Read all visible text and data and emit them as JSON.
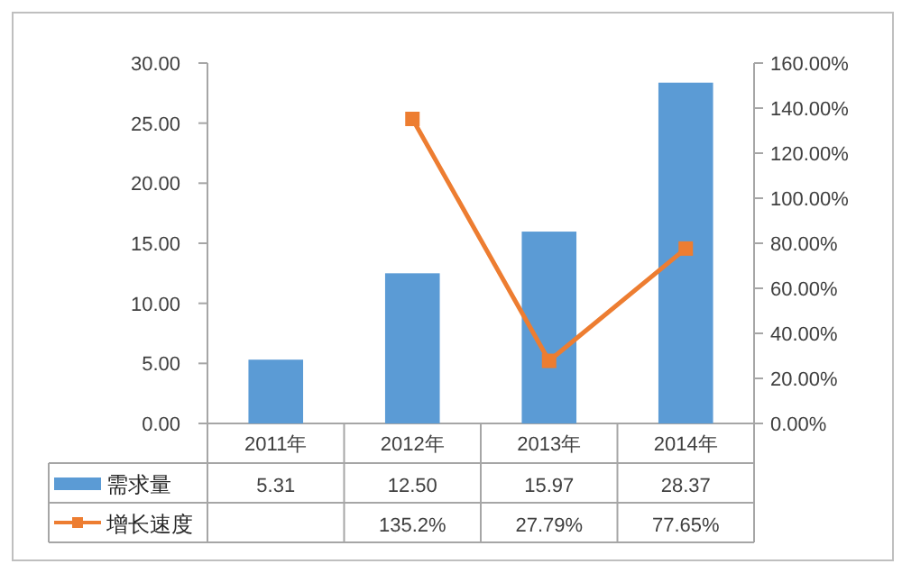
{
  "chart_data": {
    "type": "bar",
    "categories": [
      "2011年",
      "2012年",
      "2013年",
      "2014年"
    ],
    "series": [
      {
        "name": "需求量",
        "color": "#5b9bd5",
        "values": [
          5.31,
          12.5,
          15.97,
          28.37
        ],
        "value_labels": [
          "5.31",
          "12.50",
          "15.97",
          "28.37"
        ]
      },
      {
        "name": "增长速度",
        "type": "line",
        "axis": "y2",
        "color": "#ed7d31",
        "marker": "square",
        "values": [
          null,
          135.2,
          27.79,
          77.65
        ],
        "value_labels": [
          null,
          "135.2%",
          "27.79%",
          "77.65%"
        ]
      }
    ],
    "ylim": [
      0,
      30
    ],
    "yticks": [
      {
        "value": 0,
        "label": "0.00"
      },
      {
        "value": 5,
        "label": "5.00"
      },
      {
        "value": 10,
        "label": "10.00"
      },
      {
        "value": 15,
        "label": "15.00"
      },
      {
        "value": 20,
        "label": "20.00"
      },
      {
        "value": 25,
        "label": "25.00"
      },
      {
        "value": 30,
        "label": "30.00"
      }
    ],
    "y2lim": [
      0,
      160
    ],
    "y2ticks": [
      {
        "value": 0,
        "label": "0.00%"
      },
      {
        "value": 20,
        "label": "20.00%"
      },
      {
        "value": 40,
        "label": "40.00%"
      },
      {
        "value": 60,
        "label": "60.00%"
      },
      {
        "value": 80,
        "label": "80.00%"
      },
      {
        "value": 100,
        "label": "100.00%"
      },
      {
        "value": 120,
        "label": "120.00%"
      },
      {
        "value": 140,
        "label": "140.00%"
      },
      {
        "value": 160,
        "label": "160.00%"
      }
    ],
    "legend": "bottom",
    "grid": false
  }
}
